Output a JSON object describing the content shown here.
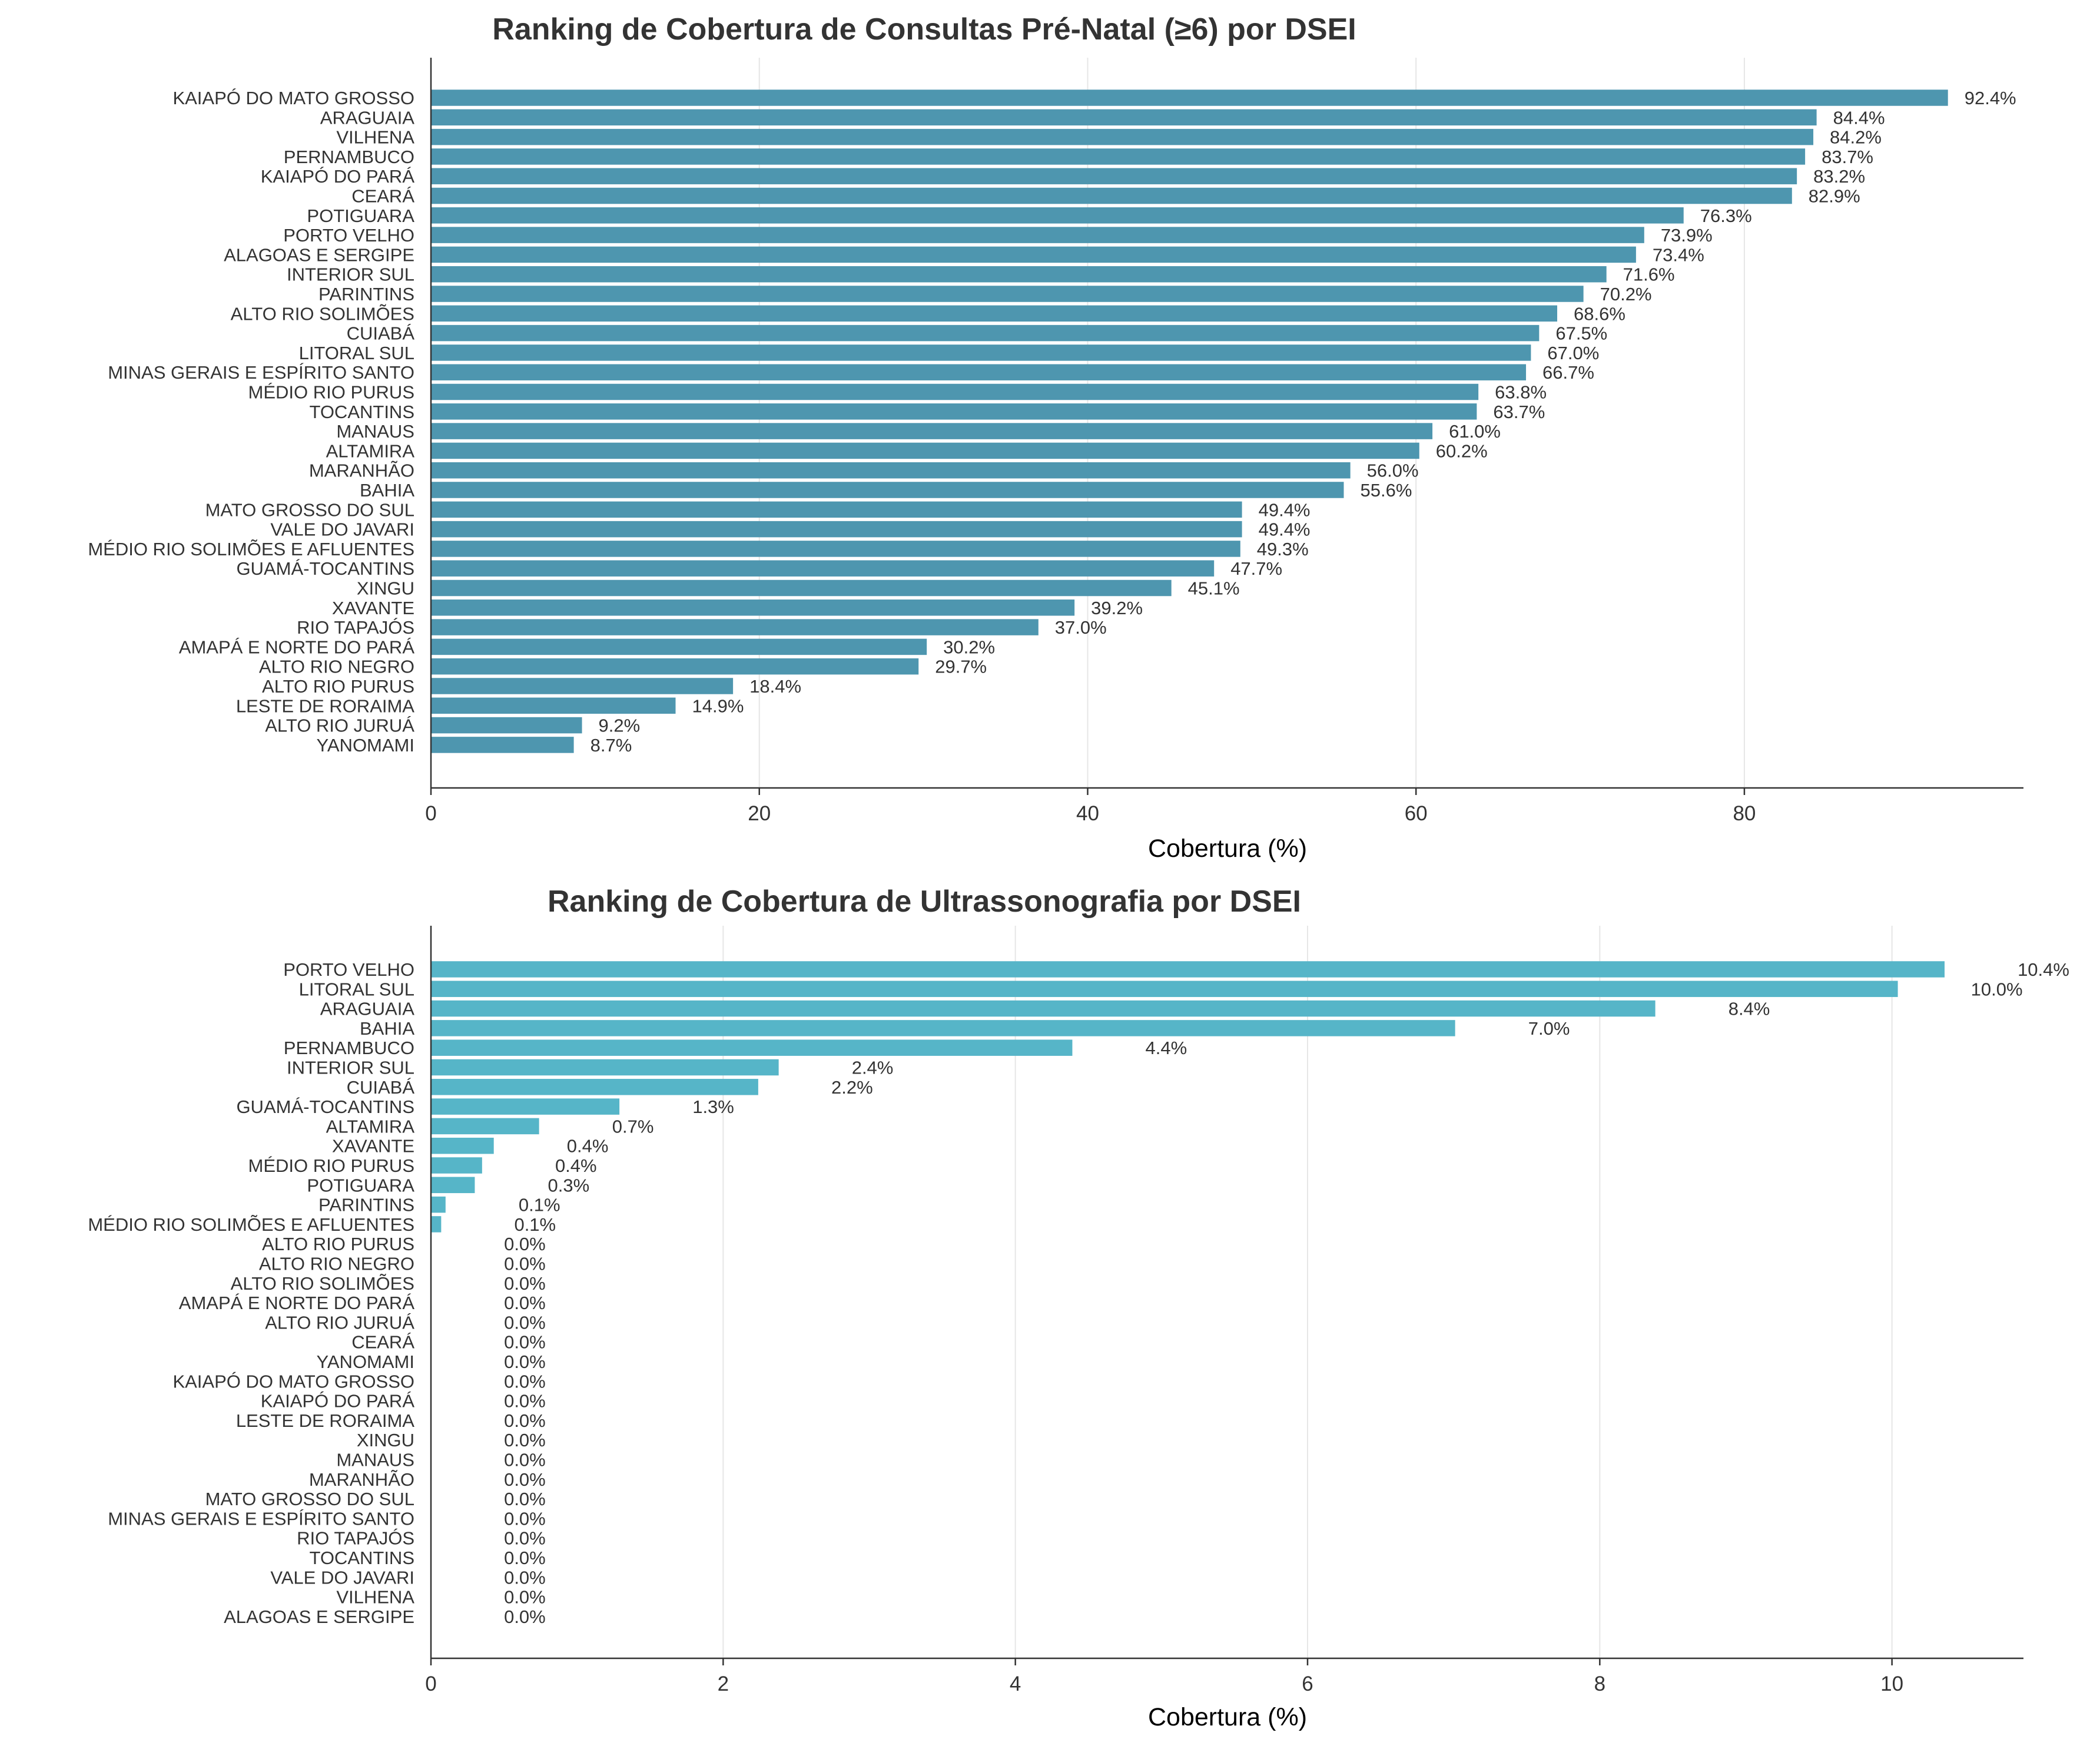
{
  "chart_data": [
    {
      "type": "bar",
      "orientation": "horizontal",
      "title": "Ranking de Cobertura de Consultas Pré-Natal (≥6) por DSEI",
      "xlabel": "Cobertura (%)",
      "ylabel": "",
      "xlim": [
        0,
        97
      ],
      "xticks": [
        0,
        20,
        40,
        60,
        80
      ],
      "grid": "x",
      "bar_color": "#4E96AF",
      "categories": [
        "KAIAPÓ DO MATO GROSSO",
        "ARAGUAIA",
        "VILHENA",
        "PERNAMBUCO",
        "KAIAPÓ DO PARÁ",
        "CEARÁ",
        "POTIGUARA",
        "PORTO VELHO",
        "ALAGOAS E SERGIPE",
        "INTERIOR SUL",
        "PARINTINS",
        "ALTO RIO SOLIMÕES",
        "CUIABÁ",
        "LITORAL SUL",
        "MINAS GERAIS E ESPÍRITO SANTO",
        "MÉDIO RIO PURUS",
        "TOCANTINS",
        "MANAUS",
        "ALTAMIRA",
        "MARANHÃO",
        "BAHIA",
        "MATO GROSSO DO SUL",
        "VALE DO JAVARI",
        "MÉDIO RIO SOLIMÕES E AFLUENTES",
        "GUAMÁ-TOCANTINS",
        "XINGU",
        "XAVANTE",
        "RIO TAPAJÓS",
        "AMAPÁ E NORTE DO PARÁ",
        "ALTO RIO NEGRO",
        "ALTO RIO PURUS",
        "LESTE DE RORAIMA",
        "ALTO RIO JURUÁ",
        "YANOMAMI"
      ],
      "values": [
        92.4,
        84.4,
        84.2,
        83.7,
        83.2,
        82.9,
        76.3,
        73.9,
        73.4,
        71.6,
        70.2,
        68.6,
        67.5,
        67.0,
        66.7,
        63.8,
        63.7,
        61.0,
        60.2,
        56.0,
        55.6,
        49.4,
        49.4,
        49.3,
        47.7,
        45.1,
        39.2,
        37.0,
        30.2,
        29.7,
        18.4,
        14.9,
        9.2,
        8.7
      ],
      "labels": [
        "92.4%",
        "84.4%",
        "84.2%",
        "83.7%",
        "83.2%",
        "82.9%",
        "76.3%",
        "73.9%",
        "73.4%",
        "71.6%",
        "70.2%",
        "68.6%",
        "67.5%",
        "67.0%",
        "66.7%",
        "63.8%",
        "63.7%",
        "61.0%",
        "60.2%",
        "56.0%",
        "55.6%",
        "49.4%",
        "49.4%",
        "49.3%",
        "47.7%",
        "45.1%",
        "39.2%",
        "37.0%",
        "30.2%",
        "29.7%",
        "18.4%",
        "14.9%",
        "9.2%",
        "8.7%"
      ]
    },
    {
      "type": "bar",
      "orientation": "horizontal",
      "title": "Ranking de Cobertura de Ultrassonografia por DSEI",
      "xlabel": "Cobertura (%)",
      "ylabel": "",
      "xlim": [
        0,
        10.9
      ],
      "xticks": [
        0,
        2,
        4,
        6,
        8,
        10
      ],
      "grid": "x",
      "bar_color": "#56B5C8",
      "categories": [
        "PORTO VELHO",
        "LITORAL SUL",
        "ARAGUAIA",
        "BAHIA",
        "PERNAMBUCO",
        "INTERIOR SUL",
        "CUIABÁ",
        "GUAMÁ-TOCANTINS",
        "ALTAMIRA",
        "XAVANTE",
        "MÉDIO RIO PURUS",
        "POTIGUARA",
        "PARINTINS",
        "MÉDIO RIO SOLIMÕES E AFLUENTES",
        "ALTO RIO PURUS",
        "ALTO RIO NEGRO",
        "ALTO RIO SOLIMÕES",
        "AMAPÁ E NORTE DO PARÁ",
        "ALTO RIO JURUÁ",
        "CEARÁ",
        "YANOMAMI",
        "KAIAPÓ DO MATO GROSSO",
        "KAIAPÓ DO PARÁ",
        "LESTE DE RORAIMA",
        "XINGU",
        "MANAUS",
        "MARANHÃO",
        "MATO GROSSO DO SUL",
        "MINAS GERAIS E ESPÍRITO SANTO",
        "RIO TAPAJÓS",
        "TOCANTINS",
        "VALE DO JAVARI",
        "VILHENA",
        "ALAGOAS E SERGIPE"
      ],
      "values": [
        10.36,
        10.04,
        8.38,
        7.01,
        4.39,
        2.38,
        2.24,
        1.29,
        0.74,
        0.43,
        0.35,
        0.3,
        0.1,
        0.07,
        0,
        0,
        0,
        0,
        0,
        0,
        0,
        0,
        0,
        0,
        0,
        0,
        0,
        0,
        0,
        0,
        0,
        0,
        0,
        0
      ],
      "labels": [
        "10.4%",
        "10.0%",
        "8.4%",
        "7.0%",
        "4.4%",
        "2.4%",
        "2.2%",
        "1.3%",
        "0.7%",
        "0.4%",
        "0.4%",
        "0.3%",
        "0.1%",
        "0.1%",
        "0.0%",
        "0.0%",
        "0.0%",
        "0.0%",
        "0.0%",
        "0.0%",
        "0.0%",
        "0.0%",
        "0.0%",
        "0.0%",
        "0.0%",
        "0.0%",
        "0.0%",
        "0.0%",
        "0.0%",
        "0.0%",
        "0.0%",
        "0.0%",
        "0.0%",
        "0.0%"
      ]
    }
  ]
}
